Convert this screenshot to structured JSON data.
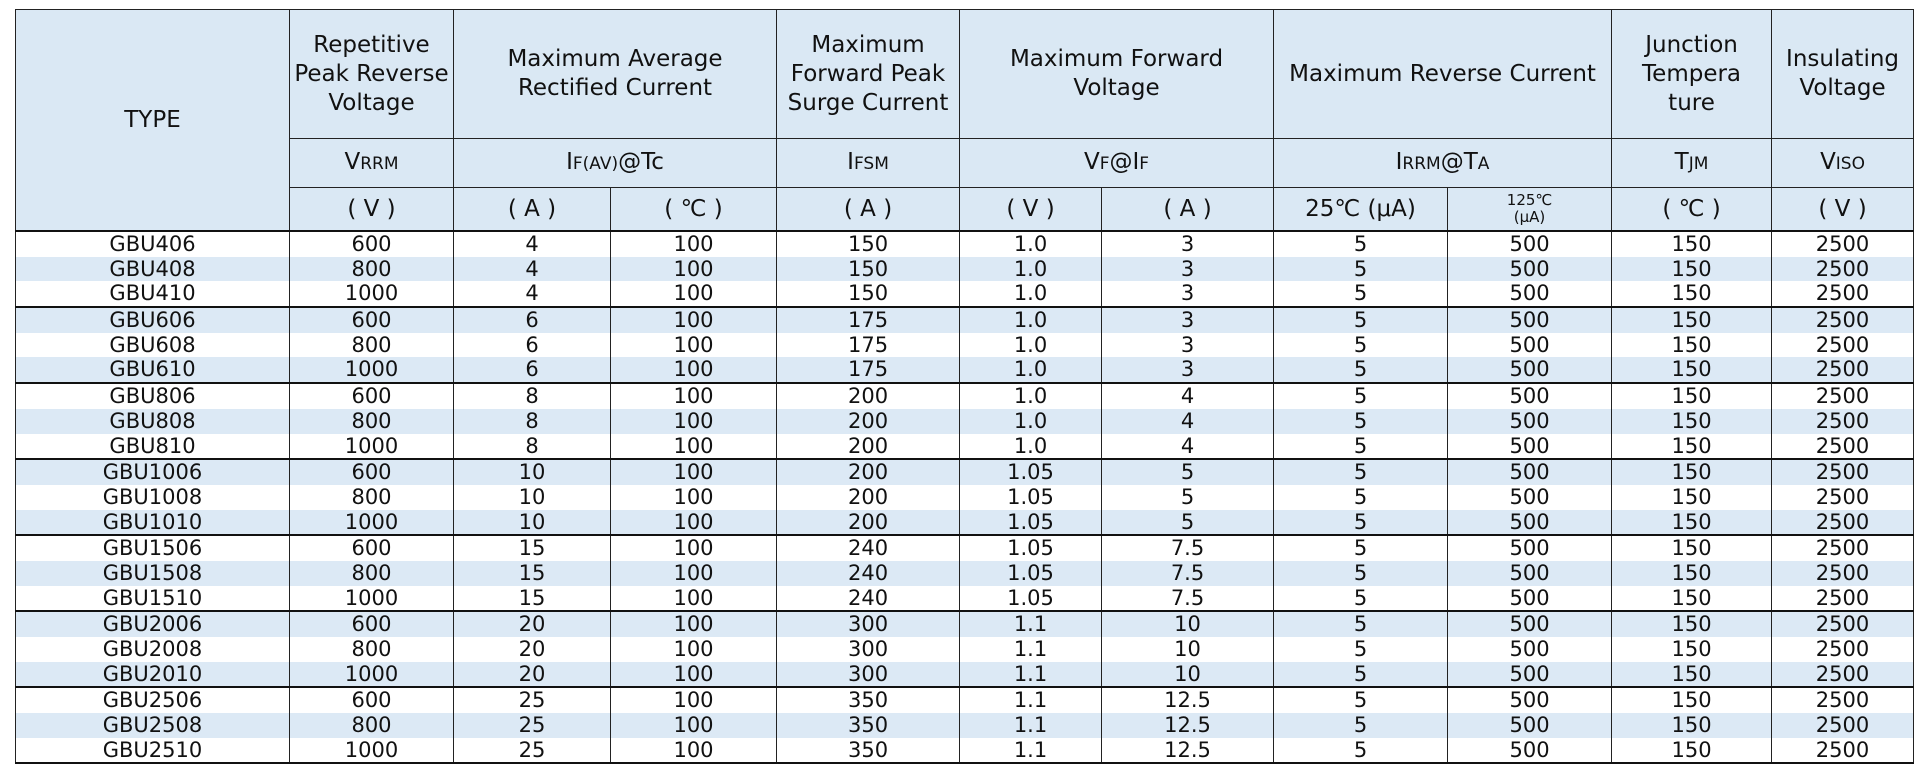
{
  "table": {
    "header": {
      "titles": [
        "TYPE",
        "Repetitive Peak Reverse Voltage",
        "Maximum Average Rectified Current",
        "Maximum Forward Peak Surge Current",
        "Maximum Forward Voltage",
        "Maximum Reverse Current",
        "Junction Tempera ture",
        "Insulating Voltage"
      ],
      "symbols": [
        [
          "V",
          "RRM"
        ],
        [
          "I",
          "F(AV)",
          "@Tc"
        ],
        [
          "I",
          "FSM"
        ],
        [
          "V",
          "F",
          "@I",
          "F"
        ],
        [
          "I",
          "RRM",
          "@T",
          "A"
        ],
        [
          "T",
          "JM"
        ],
        [
          "V",
          "ISO"
        ]
      ],
      "units": [
        "( V )",
        "( A )",
        "( ℃ )",
        "( A )",
        "( V )",
        "( A )",
        "25℃ (μA)",
        "125℃\n(μA)",
        "( ℃ )",
        "( V )"
      ]
    },
    "rows": [
      [
        "GBU406",
        "600",
        "4",
        "100",
        "150",
        "1.0",
        "3",
        "5",
        "500",
        "150",
        "2500"
      ],
      [
        "GBU408",
        "800",
        "4",
        "100",
        "150",
        "1.0",
        "3",
        "5",
        "500",
        "150",
        "2500"
      ],
      [
        "GBU410",
        "1000",
        "4",
        "100",
        "150",
        "1.0",
        "3",
        "5",
        "500",
        "150",
        "2500"
      ],
      [
        "GBU606",
        "600",
        "6",
        "100",
        "175",
        "1.0",
        "3",
        "5",
        "500",
        "150",
        "2500"
      ],
      [
        "GBU608",
        "800",
        "6",
        "100",
        "175",
        "1.0",
        "3",
        "5",
        "500",
        "150",
        "2500"
      ],
      [
        "GBU610",
        "1000",
        "6",
        "100",
        "175",
        "1.0",
        "3",
        "5",
        "500",
        "150",
        "2500"
      ],
      [
        "GBU806",
        "600",
        "8",
        "100",
        "200",
        "1.0",
        "4",
        "5",
        "500",
        "150",
        "2500"
      ],
      [
        "GBU808",
        "800",
        "8",
        "100",
        "200",
        "1.0",
        "4",
        "5",
        "500",
        "150",
        "2500"
      ],
      [
        "GBU810",
        "1000",
        "8",
        "100",
        "200",
        "1.0",
        "4",
        "5",
        "500",
        "150",
        "2500"
      ],
      [
        "GBU1006",
        "600",
        "10",
        "100",
        "200",
        "1.05",
        "5",
        "5",
        "500",
        "150",
        "2500"
      ],
      [
        "GBU1008",
        "800",
        "10",
        "100",
        "200",
        "1.05",
        "5",
        "5",
        "500",
        "150",
        "2500"
      ],
      [
        "GBU1010",
        "1000",
        "10",
        "100",
        "200",
        "1.05",
        "5",
        "5",
        "500",
        "150",
        "2500"
      ],
      [
        "GBU1506",
        "600",
        "15",
        "100",
        "240",
        "1.05",
        "7.5",
        "5",
        "500",
        "150",
        "2500"
      ],
      [
        "GBU1508",
        "800",
        "15",
        "100",
        "240",
        "1.05",
        "7.5",
        "5",
        "500",
        "150",
        "2500"
      ],
      [
        "GBU1510",
        "1000",
        "15",
        "100",
        "240",
        "1.05",
        "7.5",
        "5",
        "500",
        "150",
        "2500"
      ],
      [
        "GBU2006",
        "600",
        "20",
        "100",
        "300",
        "1.1",
        "10",
        "5",
        "500",
        "150",
        "2500"
      ],
      [
        "GBU2008",
        "800",
        "20",
        "100",
        "300",
        "1.1",
        "10",
        "5",
        "500",
        "150",
        "2500"
      ],
      [
        "GBU2010",
        "1000",
        "20",
        "100",
        "300",
        "1.1",
        "10",
        "5",
        "500",
        "150",
        "2500"
      ],
      [
        "GBU2506",
        "600",
        "25",
        "100",
        "350",
        "1.1",
        "12.5",
        "5",
        "500",
        "150",
        "2500"
      ],
      [
        "GBU2508",
        "800",
        "25",
        "100",
        "350",
        "1.1",
        "12.5",
        "5",
        "500",
        "150",
        "2500"
      ],
      [
        "GBU2510",
        "1000",
        "25",
        "100",
        "350",
        "1.1",
        "12.5",
        "5",
        "500",
        "150",
        "2500"
      ]
    ]
  }
}
